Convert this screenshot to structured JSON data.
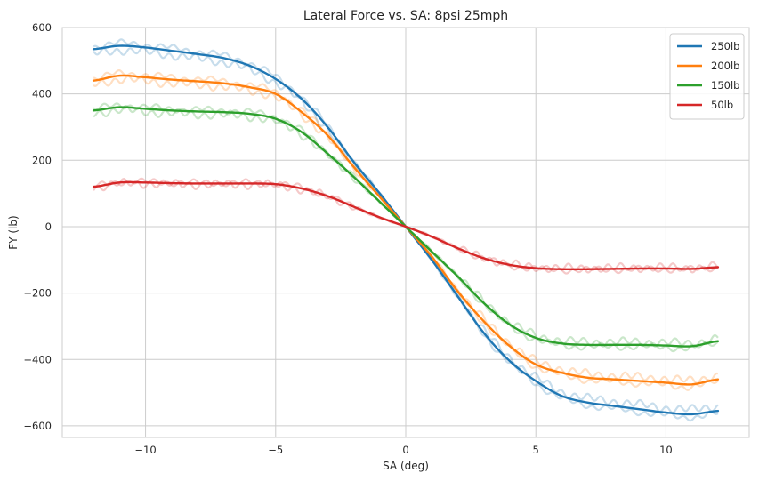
{
  "chart_data": {
    "type": "line",
    "title": "Lateral Force vs. SA: 8psi 25mph",
    "xlabel": "SA (deg)",
    "ylabel": "FY (lb)",
    "xlim": [
      -13.2,
      13.2
    ],
    "ylim": [
      -635,
      600
    ],
    "xticks": [
      -10,
      -5,
      0,
      5,
      10
    ],
    "xtick_labels": [
      "−10",
      "−5",
      "0",
      "5",
      "10"
    ],
    "yticks": [
      -600,
      -400,
      -200,
      0,
      200,
      400,
      600
    ],
    "ytick_labels": [
      "−600",
      "−400",
      "−200",
      "0",
      "200",
      "400",
      "600"
    ],
    "grid": true,
    "legend_position": "top-right",
    "x": [
      -12,
      -11,
      -10,
      -9,
      -8,
      -7,
      -6,
      -5,
      -4,
      -3,
      -2,
      -1,
      0,
      1,
      2,
      3,
      4,
      5,
      6,
      7,
      8,
      9,
      10,
      11,
      12
    ],
    "series": [
      {
        "name": "250lb",
        "color": "#1f77b4",
        "values": [
          535,
          545,
          540,
          530,
          520,
          508,
          485,
          445,
          385,
          300,
          195,
          100,
          0,
          -100,
          -210,
          -320,
          -405,
          -465,
          -510,
          -530,
          -540,
          -550,
          -560,
          -565,
          -555
        ]
      },
      {
        "name": "200lb",
        "color": "#ff7f0e",
        "values": [
          440,
          455,
          450,
          443,
          438,
          432,
          420,
          400,
          345,
          275,
          180,
          90,
          0,
          -90,
          -195,
          -285,
          -360,
          -415,
          -440,
          -455,
          -460,
          -465,
          -470,
          -475,
          -460
        ]
      },
      {
        "name": "150lb",
        "color": "#2ca02c",
        "values": [
          350,
          360,
          355,
          350,
          347,
          345,
          340,
          325,
          285,
          220,
          150,
          75,
          0,
          -75,
          -150,
          -230,
          -295,
          -335,
          -352,
          -356,
          -356,
          -356,
          -358,
          -360,
          -345
        ]
      },
      {
        "name": "50lb",
        "color": "#d62728",
        "values": [
          120,
          133,
          133,
          131,
          130,
          130,
          130,
          128,
          115,
          92,
          60,
          28,
          0,
          -30,
          -65,
          -95,
          -115,
          -125,
          -128,
          -128,
          -127,
          -126,
          -126,
          -127,
          -122
        ]
      }
    ]
  }
}
